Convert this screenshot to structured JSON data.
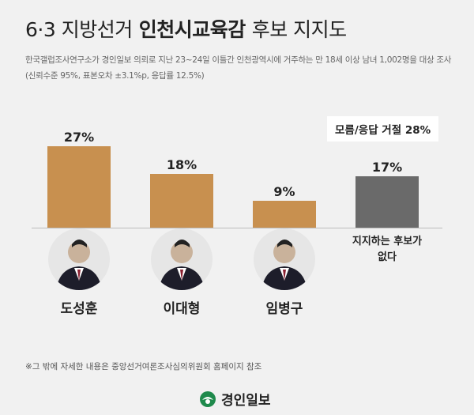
{
  "chart_data": {
    "type": "bar",
    "title": [
      "6·3 지방선거",
      "인천시교육감",
      "후보 지지도"
    ],
    "subtitle": [
      "한국갤럽조사연구소가 경인일보 의뢰로 지난 23~24일 이틀간 인천광역시에 거주하는 만 18세 이상 남녀 1,002명을 대상 조사",
      "(신뢰수준 95%, 표본오차 ±3.1%p, 응답률 12.5%)"
    ],
    "categories": [
      "도성훈",
      "이대형",
      "임병구",
      "지지하는 후보가 없다"
    ],
    "values": [
      27,
      18,
      9,
      17
    ],
    "value_labels": [
      "27%",
      "18%",
      "9%",
      "17%"
    ],
    "colors": [
      "#c8904f",
      "#c8904f",
      "#c8904f",
      "#6a6a6a"
    ],
    "annotation": "모름/응답 거절 28%"
  },
  "footnote": "※그 밖에 자세한 내용은 중앙선거여론조사심의위원회 홈페이지 참조",
  "logo": "경인일보"
}
